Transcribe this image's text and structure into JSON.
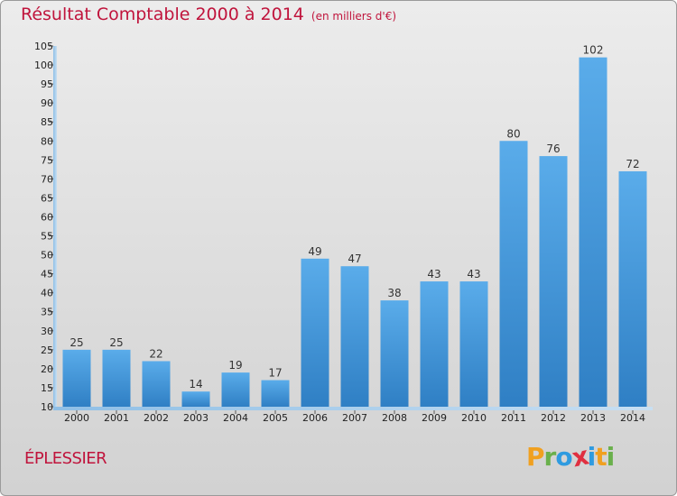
{
  "header": {
    "title": "Résultat Comptable 2000 à 2014",
    "subtitle": "(en milliers d'€)"
  },
  "footer": {
    "commune": "ÉPLESSIER",
    "logo_letters": [
      "P",
      "r",
      "o",
      "x",
      "i",
      "t",
      "i"
    ],
    "logo_colors": [
      "#f0a020",
      "#6ab04c",
      "#2f9be0",
      "#e03040",
      "#2f9be0",
      "#f0a020",
      "#6ab04c"
    ]
  },
  "colors": {
    "bar": "#3d93d6",
    "bar_top": "#5aacea",
    "title": "#c0143c"
  },
  "chart_data": {
    "type": "bar",
    "title": "Résultat Comptable 2000 à 2014",
    "subtitle": "(en milliers d'€)",
    "categories": [
      "2000",
      "2001",
      "2002",
      "2003",
      "2004",
      "2005",
      "2006",
      "2007",
      "2008",
      "2009",
      "2010",
      "2011",
      "2012",
      "2013",
      "2014"
    ],
    "values": [
      25,
      25,
      22,
      14,
      19,
      17,
      49,
      47,
      38,
      43,
      43,
      80,
      76,
      102,
      72
    ],
    "ylim": [
      10,
      105
    ],
    "yticks": [
      10,
      15,
      20,
      25,
      30,
      35,
      40,
      45,
      50,
      55,
      60,
      65,
      70,
      75,
      80,
      85,
      90,
      95,
      100,
      105
    ],
    "grid": false,
    "data_labels": true
  }
}
